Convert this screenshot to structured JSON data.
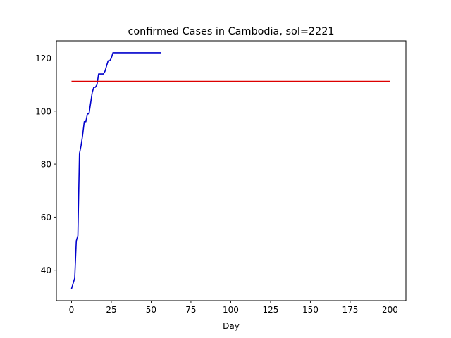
{
  "chart_data": {
    "type": "line",
    "title": "confirmed Cases in Cambodia, sol=2221",
    "xlabel": "Day",
    "ylabel": "",
    "xlim": [
      -9.5,
      210
    ],
    "ylim": [
      28.5,
      126.5
    ],
    "xticks": [
      0,
      25,
      50,
      75,
      100,
      125,
      150,
      175,
      200
    ],
    "yticks": [
      40,
      60,
      80,
      100,
      120
    ],
    "grid": false,
    "series": [
      {
        "color": "#0000cc",
        "x": [
          0,
          1,
          2,
          3,
          4,
          5,
          6,
          7,
          8,
          9,
          10,
          11,
          12,
          13,
          14,
          15,
          16,
          17,
          18,
          19,
          20,
          21,
          22,
          23,
          24,
          25,
          26,
          27,
          28,
          30,
          35,
          40,
          45,
          50,
          56
        ],
        "y": [
          33,
          35,
          37,
          51,
          53,
          84,
          87,
          91,
          96,
          96,
          99,
          99,
          103,
          107,
          109,
          109,
          110,
          114,
          114,
          114,
          114,
          115,
          117,
          119,
          119,
          120,
          122,
          122,
          122,
          122,
          122,
          122,
          122,
          122,
          122
        ]
      },
      {
        "color": "#dd0000",
        "x": [
          0,
          200
        ],
        "y": [
          111.2,
          111.2
        ]
      }
    ]
  }
}
